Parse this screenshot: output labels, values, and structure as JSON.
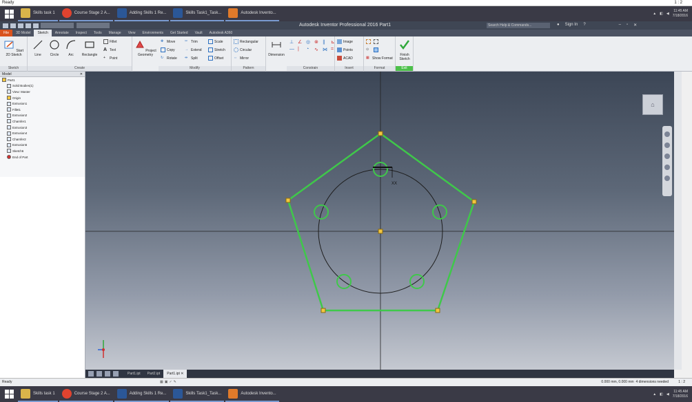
{
  "status_top": {
    "text": "Ready",
    "page": "1 : 2"
  },
  "taskbar": {
    "items": [
      {
        "label": "Skills task 1",
        "color": "#d9b44a"
      },
      {
        "label": "Course Stage 2 A...",
        "color": "#e0432f"
      },
      {
        "label": "Adding Skills 1 Re...",
        "color": "#2b5797"
      },
      {
        "label": "Skills Task1_Task...",
        "color": "#2b5797"
      },
      {
        "label": "Autodesk Invento...",
        "color": "#e07a2a"
      }
    ],
    "clock_time": "11:45 AM",
    "clock_date": "7/18/2016"
  },
  "titlebar": {
    "title": "Autodesk Inventor Professional 2016   Part1",
    "search_placeholder": "Search Help & Commands...",
    "sign_in": "Sign In",
    "help": "?"
  },
  "tabs": [
    "File",
    "3D Model",
    "Sketch",
    "Annotate",
    "Inspect",
    "Tools",
    "Manage",
    "View",
    "Environments",
    "Get Started",
    "Vault",
    "Autodesk A360"
  ],
  "active_tab": "Sketch",
  "ribbon": {
    "panels": {
      "sketch": "Sketch",
      "create": "Create",
      "modify": "Modify",
      "pattern": "Pattern",
      "constrain": "Constrain",
      "insert": "Insert",
      "format": "Format",
      "exit": "Exit"
    },
    "tools": {
      "start_sketch": "Start 2D Sketch",
      "line": "Line",
      "circle": "Circle",
      "arc": "Arc",
      "rectangle": "Rectangle",
      "fillet": "Fillet",
      "text": "Text",
      "point": "Point",
      "project_geometry": "Project Geometry",
      "move": "Move",
      "trim": "Trim",
      "scale": "Scale",
      "copy": "Copy",
      "extend": "Extend",
      "stretch": "Stretch",
      "rotate": "Rotate",
      "split": "Split",
      "offset": "Offset",
      "rectangular": "Rectangular",
      "circular": "Circular",
      "mirror": "Mirror",
      "dimension": "Dimension",
      "image": "Image",
      "points": "Points",
      "acad": "ACAD",
      "show_format": "Show Format",
      "finish_sketch": "Finish Sketch"
    }
  },
  "browser": {
    "header": "Model",
    "nodes": [
      {
        "label": "Part1",
        "indent": 0
      },
      {
        "label": "Solid Bodies(1)",
        "indent": 1
      },
      {
        "label": "View: Master",
        "indent": 1
      },
      {
        "label": "Origin",
        "indent": 1
      },
      {
        "label": "Extrusion1",
        "indent": 1
      },
      {
        "label": "Fillet1",
        "indent": 1
      },
      {
        "label": "Extrusion2",
        "indent": 1
      },
      {
        "label": "Chamfer1",
        "indent": 1
      },
      {
        "label": "Extrusion3",
        "indent": 1
      },
      {
        "label": "Extrusion4",
        "indent": 1
      },
      {
        "label": "Chamfer2",
        "indent": 1
      },
      {
        "label": "Extrusion5",
        "indent": 1
      },
      {
        "label": "Sketch6",
        "indent": 1
      },
      {
        "label": "End of Part",
        "indent": 1
      }
    ]
  },
  "canvas": {
    "dimension_label": "XX",
    "sketch_color": "#3fc84a",
    "viewcube": "⌂"
  },
  "doc_tabs": [
    "Part1.ipt",
    "Part2.ipt",
    "Part1.ipt"
  ],
  "active_doc_tab": 2,
  "statusbar": {
    "ready": "Ready",
    "coords": "0.000 mm, 0.000 mm",
    "dimensions": "4 dimensions needed",
    "page": "1 : 2"
  }
}
